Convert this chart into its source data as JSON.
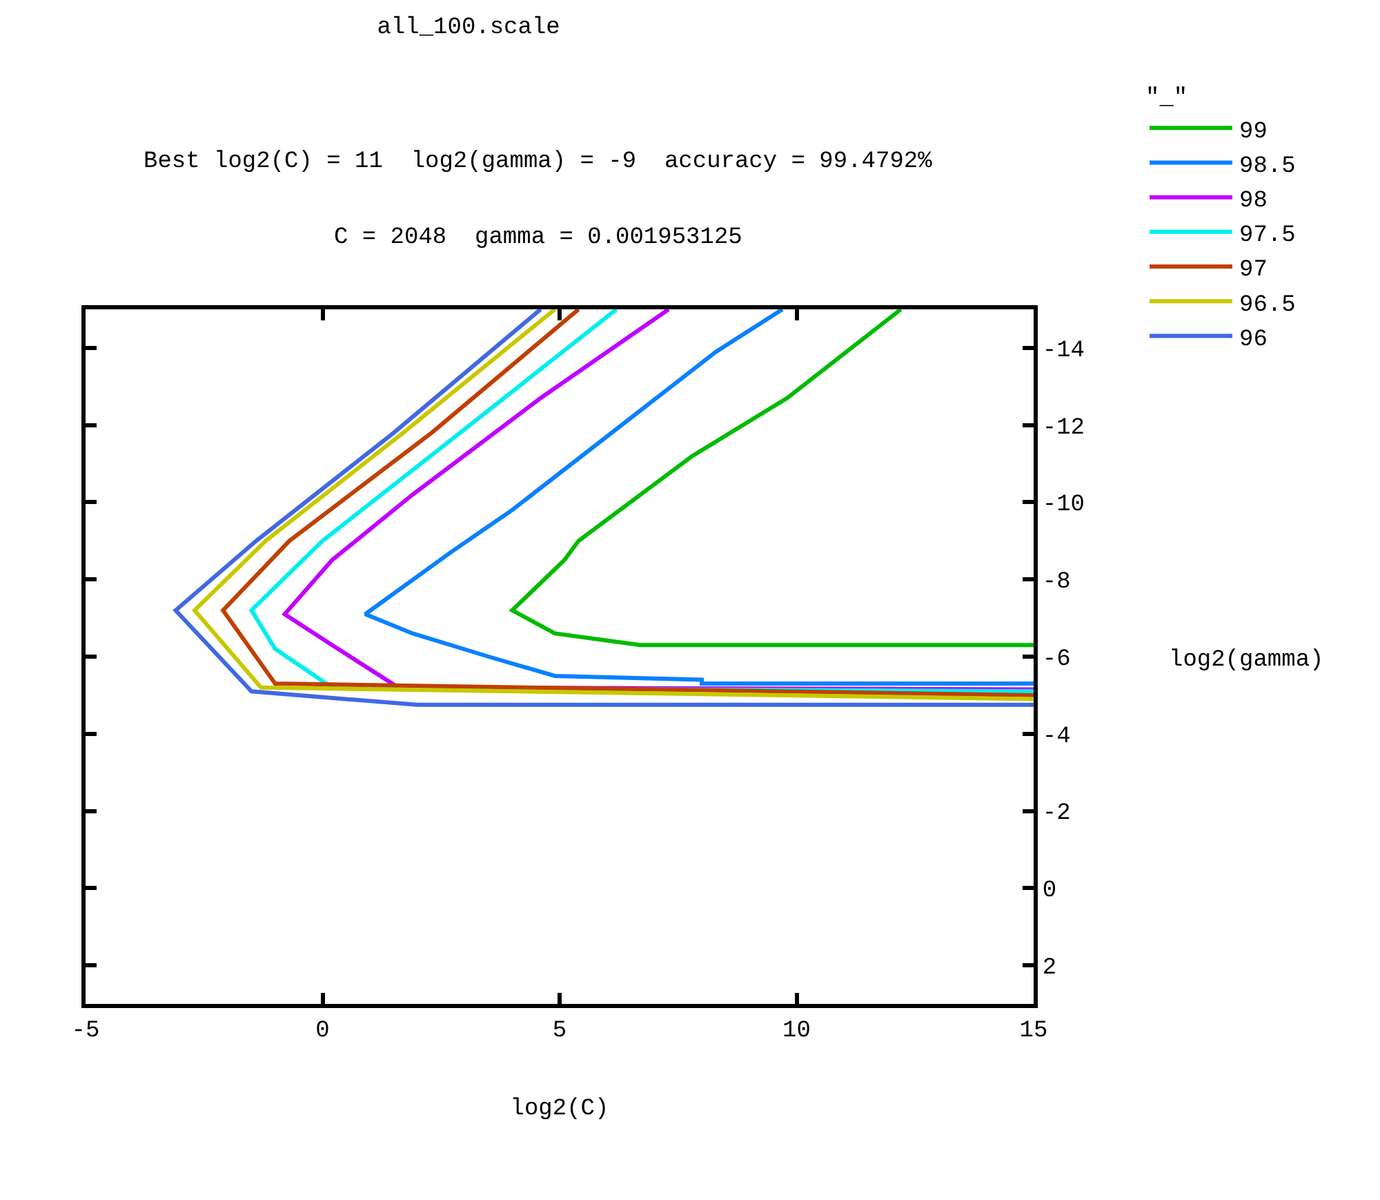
{
  "chart_data": {
    "type": "line",
    "title": "all_100.scale",
    "subtitle": "Best log2(C) = 11  log2(gamma) = -9  accuracy = 99.4792%\nC = 2048  gamma = 0.001953125",
    "xlabel": "log2(C)",
    "ylabel": "log2(gamma)",
    "legend_title": "\"_\"",
    "legend": "top right",
    "grid": false,
    "marker": "none",
    "line_style": "solid",
    "xlim": [
      -5,
      15
    ],
    "xticks": [
      -5,
      0,
      5,
      10,
      15
    ],
    "ylim": [
      3,
      -15
    ],
    "yticks": [
      -14,
      -12,
      -10,
      -8,
      -6,
      -4,
      -2,
      0,
      2
    ],
    "series": [
      {
        "name": "99",
        "color": "#00bb00",
        "x": [
          12.2,
          9.8,
          7.8,
          5.4,
          5.1,
          4.0,
          4.9,
          6.7,
          15
        ],
        "values": [
          -15,
          -12.7,
          -11.2,
          -9.0,
          -8.5,
          -7.2,
          -6.6,
          -6.3,
          -6.3
        ]
      },
      {
        "name": "98.5",
        "color": "#0a80ff",
        "x": [
          9.7,
          8.3,
          4.0,
          2.7,
          0.9,
          1.9,
          3.5,
          4.9,
          8.0,
          8.0,
          15
        ],
        "values": [
          -15,
          -13.9,
          -9.8,
          -8.7,
          -7.1,
          -6.6,
          -6.0,
          -5.5,
          -5.4,
          -5.3,
          -5.3
        ]
      },
      {
        "name": "98",
        "color": "#c000ff",
        "x": [
          7.3,
          4.6,
          1.9,
          0.2,
          -0.8,
          0.2,
          1.6,
          15
        ],
        "values": [
          -15,
          -12.7,
          -10.2,
          -8.5,
          -7.1,
          -6.3,
          -5.2,
          -5.15
        ]
      },
      {
        "name": "97.5",
        "color": "#00eeee",
        "x": [
          6.2,
          2.9,
          0.0,
          -1.5,
          -1.0,
          0.2,
          15
        ],
        "values": [
          -15,
          -11.8,
          -9.0,
          -7.2,
          -6.2,
          -5.2,
          -5.1
        ]
      },
      {
        "name": "97",
        "color": "#c04000",
        "x": [
          5.4,
          2.3,
          -0.7,
          -2.1,
          -1.0,
          15
        ],
        "values": [
          -15,
          -11.8,
          -9.0,
          -7.2,
          -5.3,
          -5.0
        ]
      },
      {
        "name": "96.5",
        "color": "#c8c800",
        "x": [
          4.9,
          1.7,
          -1.2,
          -2.7,
          -1.3,
          15
        ],
        "values": [
          -15,
          -11.8,
          -9.0,
          -7.2,
          -5.2,
          -4.9
        ]
      },
      {
        "name": "96",
        "color": "#4169e1",
        "x": [
          4.6,
          1.5,
          -1.4,
          -3.1,
          -1.5,
          2.0,
          15
        ],
        "values": [
          -15,
          -11.8,
          -9.0,
          -7.2,
          -5.1,
          -4.75,
          -4.75
        ]
      }
    ]
  }
}
